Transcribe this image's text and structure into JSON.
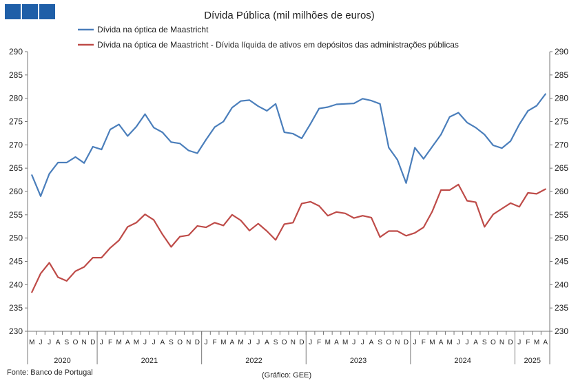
{
  "brand": {
    "color": "#1f5fa8",
    "squares": 3
  },
  "footer": {
    "source": "Fonte: Banco de Portugal",
    "credit": "(Gráfico: GEE)"
  },
  "chart_data": {
    "type": "line",
    "title": "Dívida Pública (mil milhões de euros)",
    "ylim": [
      230,
      290
    ],
    "ytick_step": 5,
    "grid": false,
    "legend_position": "top",
    "month_letters": [
      "M",
      "J",
      "J",
      "A",
      "S",
      "O",
      "N",
      "D",
      "J",
      "F",
      "M",
      "A",
      "M",
      "J",
      "J",
      "A",
      "S",
      "O",
      "N",
      "D",
      "J",
      "F",
      "M",
      "A",
      "M",
      "J",
      "J",
      "A",
      "S",
      "O",
      "N",
      "D",
      "J",
      "F",
      "M",
      "A",
      "M",
      "J",
      "J",
      "A",
      "S",
      "O",
      "N",
      "D",
      "J",
      "F",
      "M",
      "A",
      "M",
      "J",
      "J",
      "A",
      "S",
      "O",
      "N",
      "D",
      "J",
      "F",
      "M",
      "A"
    ],
    "years": [
      {
        "label": "2020",
        "start": 0,
        "end": 7
      },
      {
        "label": "2021",
        "start": 8,
        "end": 19
      },
      {
        "label": "2022",
        "start": 20,
        "end": 31
      },
      {
        "label": "2023",
        "start": 32,
        "end": 43
      },
      {
        "label": "2024",
        "start": 44,
        "end": 55
      },
      {
        "label": "2025",
        "start": 56,
        "end": 59
      }
    ],
    "series": [
      {
        "name": "Dívida na óptica de Maastricht",
        "color": "#4a7ebb",
        "values": [
          263.5,
          259.0,
          263.8,
          266.2,
          266.2,
          267.4,
          266.1,
          269.6,
          269.0,
          273.3,
          274.4,
          271.9,
          273.9,
          276.6,
          273.7,
          272.7,
          270.6,
          270.3,
          268.8,
          268.2,
          271.1,
          273.8,
          275.0,
          278.0,
          279.4,
          279.6,
          278.3,
          277.3,
          278.8,
          272.7,
          272.4,
          271.4,
          274.5,
          277.8,
          278.1,
          278.7,
          278.8,
          278.9,
          279.9,
          279.5,
          278.8,
          269.4,
          266.8,
          261.8,
          269.4,
          267.0,
          269.6,
          272.2,
          276.0,
          276.9,
          274.8,
          273.7,
          272.2,
          269.9,
          269.3,
          270.8,
          274.4,
          277.3,
          278.4,
          280.9
        ]
      },
      {
        "name": "Dívida na óptica de Maastricht - Dívida líquida de ativos em depósitos das administrações públicas",
        "color": "#be4b48",
        "values": [
          238.4,
          242.4,
          244.7,
          241.6,
          240.8,
          242.9,
          243.8,
          245.8,
          245.8,
          247.9,
          249.5,
          252.4,
          253.3,
          255.1,
          253.9,
          250.8,
          248.1,
          250.3,
          250.6,
          252.6,
          252.3,
          253.3,
          252.7,
          255.0,
          253.8,
          251.6,
          253.1,
          251.5,
          249.6,
          253.0,
          253.3,
          257.4,
          257.8,
          256.9,
          254.8,
          255.6,
          255.3,
          254.3,
          254.8,
          254.4,
          250.2,
          251.5,
          251.5,
          250.5,
          251.1,
          252.3,
          255.7,
          260.3,
          260.3,
          261.5,
          258.0,
          257.7,
          252.4,
          255.1,
          256.3,
          257.5,
          256.7,
          259.7,
          259.5,
          260.5
        ]
      }
    ]
  }
}
